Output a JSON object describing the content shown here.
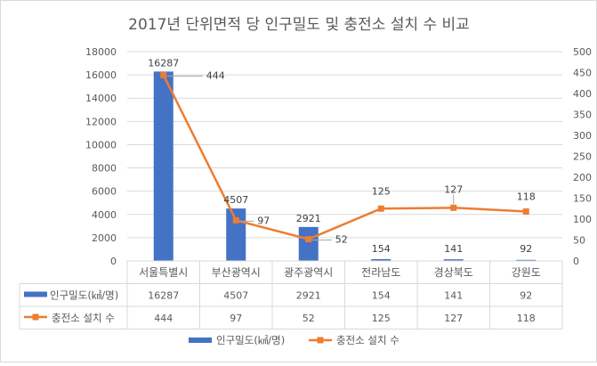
{
  "chart_data": {
    "type": "bar+line",
    "title": "2017년 단위면적 당 인구밀도 및 충전소 설치 수 비교",
    "categories": [
      "서울특별시",
      "부산광역시",
      "광주광역시",
      "전라남도",
      "경상북도",
      "강원도"
    ],
    "series": [
      {
        "name": "인구밀도(㎢/명)",
        "type": "bar",
        "axis": "left",
        "color": "#4472C4",
        "values": [
          16287,
          4507,
          2921,
          154,
          141,
          92
        ],
        "labels": [
          "16287",
          "4507",
          "2921",
          "154",
          "141",
          "92"
        ]
      },
      {
        "name": "충전소 설치 수",
        "type": "line",
        "axis": "right",
        "color": "#ED7D31",
        "values": [
          444,
          97,
          52,
          125,
          127,
          118
        ],
        "labels": [
          "444",
          "97",
          "52",
          "125",
          "127",
          "118"
        ]
      }
    ],
    "left_axis": {
      "min": 0,
      "max": 18000,
      "step": 2000,
      "ticks": [
        "0",
        "2000",
        "4000",
        "6000",
        "8000",
        "10000",
        "12000",
        "14000",
        "16000",
        "18000"
      ]
    },
    "right_axis": {
      "min": 0,
      "max": 500,
      "step": 50,
      "ticks": [
        "0",
        "50",
        "100",
        "150",
        "200",
        "250",
        "300",
        "350",
        "400",
        "450",
        "500"
      ]
    },
    "grid": true,
    "legend": "bottom",
    "data_table": true
  }
}
